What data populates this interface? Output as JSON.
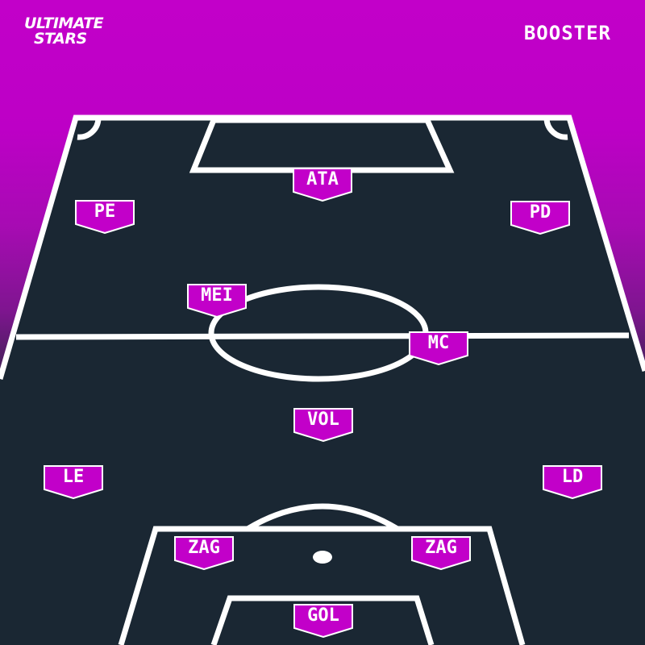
{
  "header": {
    "logo_line1": "ULTIMATE",
    "logo_line2": "STARS",
    "mode_label": "BOOSTER"
  },
  "colors": {
    "accent": "#c200c9",
    "pitch": "#1a2733",
    "lines": "#ffffff"
  },
  "positions": {
    "ata": "ATA",
    "pe": "PE",
    "pd": "PD",
    "mei": "MEI",
    "mc": "MC",
    "vol": "VOL",
    "le": "LE",
    "ld": "LD",
    "zag_left": "ZAG",
    "zag_right": "ZAG",
    "gol": "GOL"
  }
}
